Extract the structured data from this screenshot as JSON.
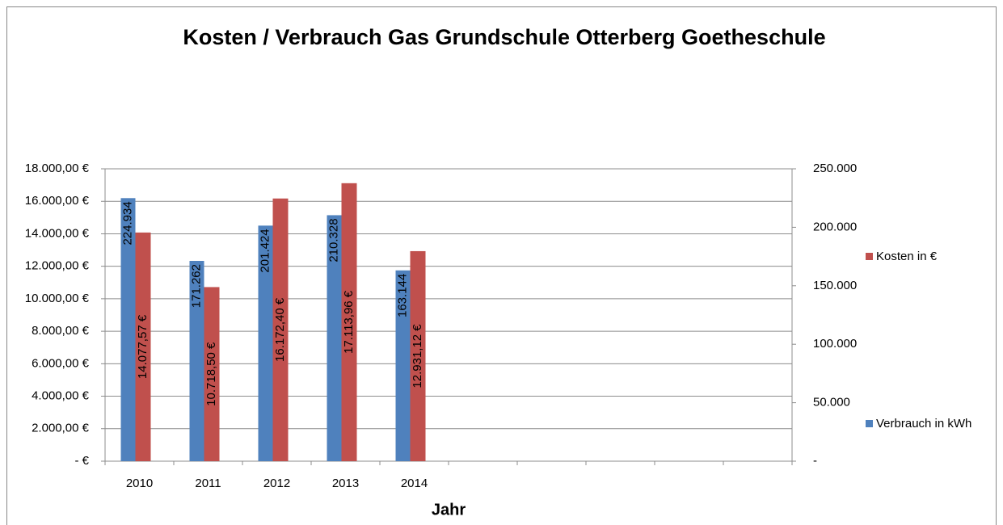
{
  "chart_data": {
    "type": "bar",
    "title": "Kosten / Verbrauch Gas Grundschule Otterberg Goetheschule",
    "x_label": "Jahr",
    "categories": [
      "2010",
      "2011",
      "2012",
      "2013",
      "2014",
      null,
      null,
      null,
      null,
      null
    ],
    "series": [
      {
        "name": "Verbrauch in kWh",
        "color": "#4f81bd",
        "axis": "y2",
        "values": [
          224934,
          171262,
          201424,
          210328,
          163144,
          null,
          null,
          null,
          null,
          null
        ],
        "value_labels": [
          "224.934",
          "171.262",
          "201.424",
          "210.328",
          "163.144",
          null,
          null,
          null,
          null,
          null
        ]
      },
      {
        "name": "Kosten in €",
        "color": "#c0504d",
        "axis": "y",
        "values": [
          14077.57,
          10718.5,
          16172.4,
          17113.96,
          12931.12,
          null,
          null,
          null,
          null,
          null
        ],
        "value_labels": [
          "14.077,57 €",
          "10.718,50 €",
          "16.172,40 €",
          "17.113,96 €",
          "12.931,12 €",
          null,
          null,
          null,
          null,
          null
        ]
      }
    ],
    "ylim": [
      0,
      18000
    ],
    "yticks": [
      {
        "value": 0,
        "label": "-  €"
      },
      {
        "value": 2000,
        "label": "2.000,00 €"
      },
      {
        "value": 4000,
        "label": "4.000,00 €"
      },
      {
        "value": 6000,
        "label": "6.000,00 €"
      },
      {
        "value": 8000,
        "label": "8.000,00 €"
      },
      {
        "value": 10000,
        "label": "10.000,00 €"
      },
      {
        "value": 12000,
        "label": "12.000,00 €"
      },
      {
        "value": 14000,
        "label": "14.000,00 €"
      },
      {
        "value": 16000,
        "label": "16.000,00 €"
      },
      {
        "value": 18000,
        "label": "18.000,00 €"
      }
    ],
    "y2lim": [
      0,
      250000
    ],
    "y2ticks": [
      {
        "value": 0,
        "label": "-"
      },
      {
        "value": 50000,
        "label": "50.000"
      },
      {
        "value": 100000,
        "label": "100.000"
      },
      {
        "value": 150000,
        "label": "150.000"
      },
      {
        "value": 200000,
        "label": "200.000"
      },
      {
        "value": 250000,
        "label": "250.000"
      }
    ],
    "grid": true
  }
}
